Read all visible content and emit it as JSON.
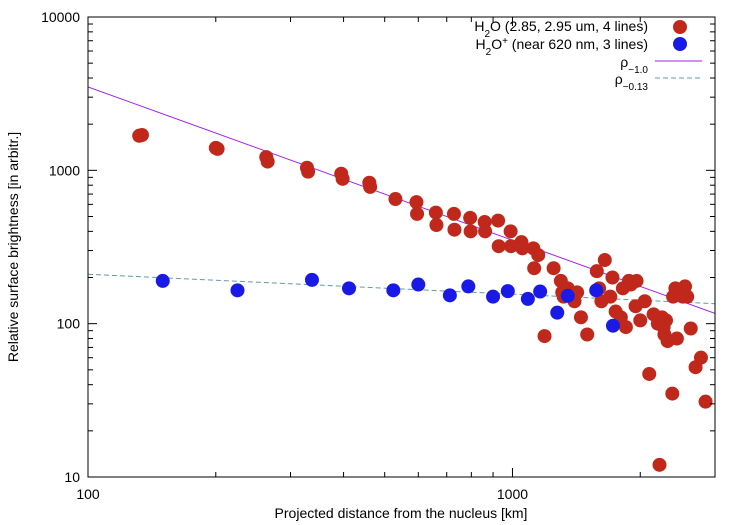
{
  "chart_data": {
    "type": "scatter",
    "title": "",
    "xlabel": "Projected distance from the nucleus [km]",
    "ylabel": "Relative surface brightness [in arbitr.]",
    "x_scale": "log",
    "y_scale": "log",
    "xlim": [
      100,
      3000
    ],
    "ylim": [
      10,
      10000
    ],
    "x_ticks": [
      "100",
      "1000"
    ],
    "y_ticks": [
      "10",
      "100",
      "1000",
      "10000"
    ],
    "grid": false,
    "legend_position": "top-right",
    "series": [
      {
        "name_parts": {
          "a": "H",
          "sub": "2",
          "b": "O (2.85, 2.95 um, 4 lines)"
        },
        "color": "#c1281c",
        "points": [
          [
            132,
            1680
          ],
          [
            134,
            1700
          ],
          [
            200,
            1400
          ],
          [
            202,
            1380
          ],
          [
            263,
            1220
          ],
          [
            265,
            1140
          ],
          [
            328,
            1040
          ],
          [
            330,
            980
          ],
          [
            395,
            950
          ],
          [
            398,
            880
          ],
          [
            460,
            830
          ],
          [
            462,
            780
          ],
          [
            530,
            650
          ],
          [
            594,
            620
          ],
          [
            596,
            520
          ],
          [
            660,
            530
          ],
          [
            662,
            440
          ],
          [
            728,
            520
          ],
          [
            730,
            410
          ],
          [
            795,
            490
          ],
          [
            797,
            400
          ],
          [
            860,
            460
          ],
          [
            862,
            400
          ],
          [
            925,
            470
          ],
          [
            928,
            320
          ],
          [
            990,
            400
          ],
          [
            992,
            320
          ],
          [
            1050,
            340
          ],
          [
            1055,
            310
          ],
          [
            1120,
            310
          ],
          [
            1125,
            230
          ],
          [
            1150,
            280
          ],
          [
            1190,
            83
          ],
          [
            1250,
            230
          ],
          [
            1300,
            190
          ],
          [
            1310,
            160
          ],
          [
            1320,
            150
          ],
          [
            1350,
            170
          ],
          [
            1400,
            140
          ],
          [
            1420,
            160
          ],
          [
            1450,
            110
          ],
          [
            1500,
            85
          ],
          [
            1580,
            220
          ],
          [
            1600,
            170
          ],
          [
            1620,
            140
          ],
          [
            1650,
            260
          ],
          [
            1700,
            150
          ],
          [
            1720,
            200
          ],
          [
            1750,
            120
          ],
          [
            1800,
            110
          ],
          [
            1820,
            170
          ],
          [
            1850,
            95
          ],
          [
            1880,
            190
          ],
          [
            1900,
            180
          ],
          [
            1950,
            130
          ],
          [
            1960,
            190
          ],
          [
            2000,
            105
          ],
          [
            2050,
            140
          ],
          [
            2100,
            47
          ],
          [
            2150,
            115
          ],
          [
            2200,
            100
          ],
          [
            2220,
            12
          ],
          [
            2250,
            110
          ],
          [
            2270,
            95
          ],
          [
            2280,
            85
          ],
          [
            2300,
            105
          ],
          [
            2320,
            77
          ],
          [
            2380,
            35
          ],
          [
            2390,
            150
          ],
          [
            2420,
            170
          ],
          [
            2440,
            80
          ],
          [
            2480,
            160
          ],
          [
            2520,
            150
          ],
          [
            2550,
            175
          ],
          [
            2580,
            150
          ],
          [
            2630,
            93
          ],
          [
            2700,
            52
          ],
          [
            2780,
            60
          ],
          [
            2850,
            31
          ]
        ]
      },
      {
        "name_parts": {
          "a": "H",
          "sub": "2",
          "b": "O",
          "sup": "+",
          "c": " (near 620 nm, 3 lines)"
        },
        "color": "#1a1ae6",
        "points": [
          [
            150,
            190
          ],
          [
            225,
            165
          ],
          [
            337,
            193
          ],
          [
            412,
            170
          ],
          [
            524,
            165
          ],
          [
            600,
            180
          ],
          [
            712,
            153
          ],
          [
            787,
            175
          ],
          [
            900,
            150
          ],
          [
            975,
            163
          ],
          [
            1087,
            145
          ],
          [
            1162,
            162
          ],
          [
            1275,
            118
          ],
          [
            1350,
            152
          ],
          [
            1575,
            165
          ],
          [
            1725,
            97
          ]
        ]
      }
    ],
    "fits": [
      {
        "label": "ρ",
        "sub": "−1.0",
        "exponent": -1.0,
        "amplitude_at_100": 3500,
        "color": "#a020f0",
        "style": "solid"
      },
      {
        "label": "ρ",
        "sub": "−0.13",
        "exponent": -0.13,
        "amplitude_at_100": 210,
        "color": "#5f9ea0",
        "style": "dashed"
      }
    ]
  }
}
